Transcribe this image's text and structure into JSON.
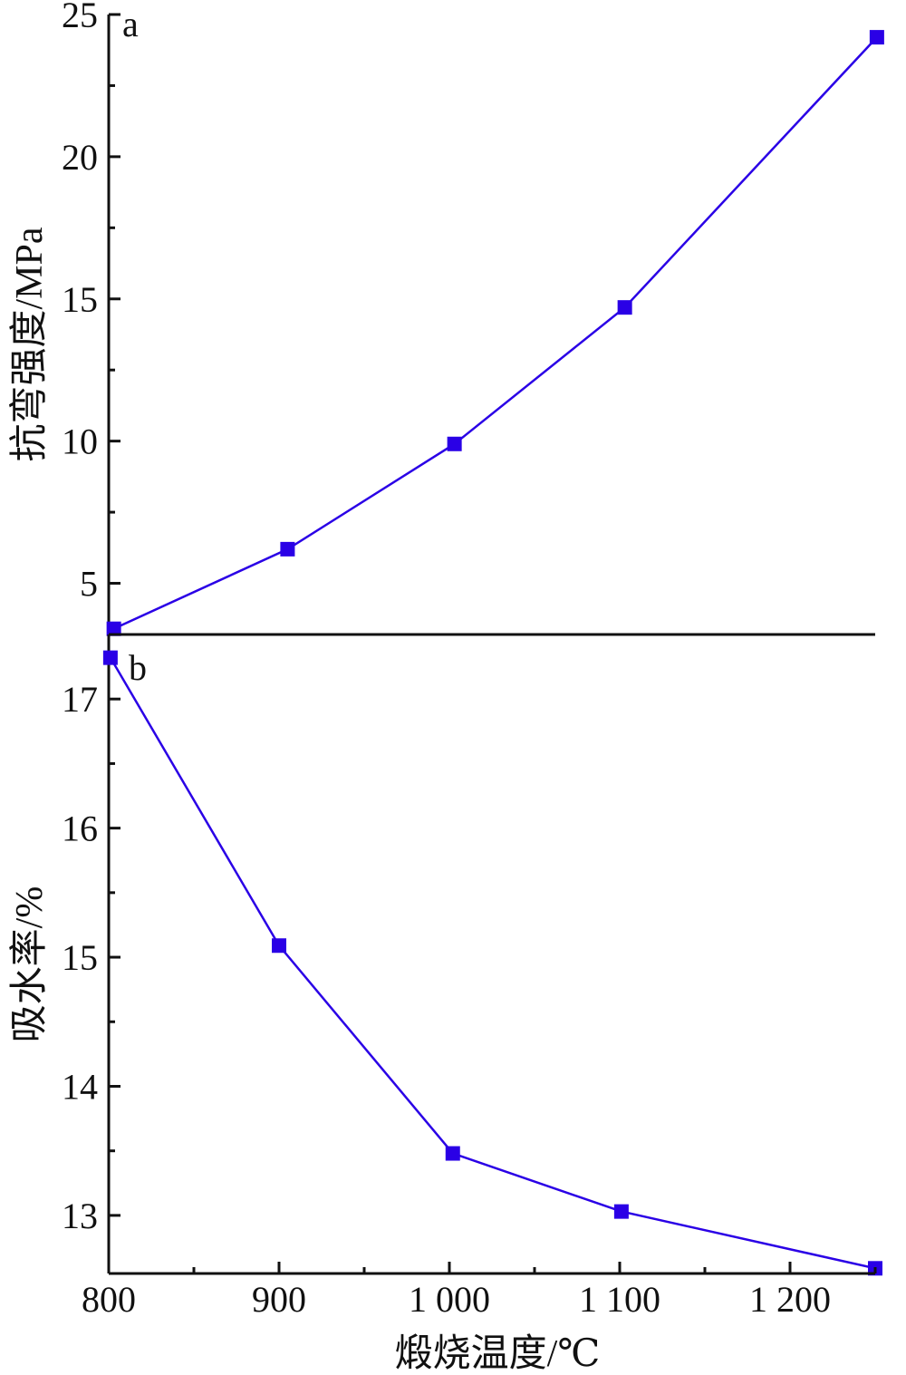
{
  "colors": {
    "series": "#2a00e6",
    "axis": "#111111"
  },
  "xaxis": {
    "label": "煅烧温度/℃",
    "range": [
      800,
      1250
    ],
    "ticks": [
      800,
      900,
      1000,
      1100,
      1200
    ],
    "tick_labels": [
      "800",
      "900",
      "1 000",
      "1 100",
      "1 200"
    ],
    "minor_step": 50
  },
  "chart_data": [
    {
      "type": "line",
      "panel_label": "a",
      "ylabel": "抗弯强度/MPa",
      "ylim": [
        3.2,
        25
      ],
      "yticks": [
        5,
        10,
        15,
        20,
        25
      ],
      "y_minor_step": 2.5,
      "x": [
        803,
        905,
        1003,
        1103,
        1251
      ],
      "values": [
        3.4,
        6.2,
        9.9,
        14.7,
        24.2
      ],
      "marker": "square",
      "grid": false
    },
    {
      "type": "line",
      "panel_label": "b",
      "ylabel": "吸水率/%",
      "ylim": [
        12.55,
        17.5
      ],
      "yticks": [
        13,
        14,
        15,
        16,
        17
      ],
      "y_minor_step": 0.5,
      "x": [
        801,
        900,
        1002,
        1101,
        1250
      ],
      "values": [
        17.32,
        15.09,
        13.48,
        13.03,
        12.59
      ],
      "marker": "square",
      "grid": false
    }
  ]
}
